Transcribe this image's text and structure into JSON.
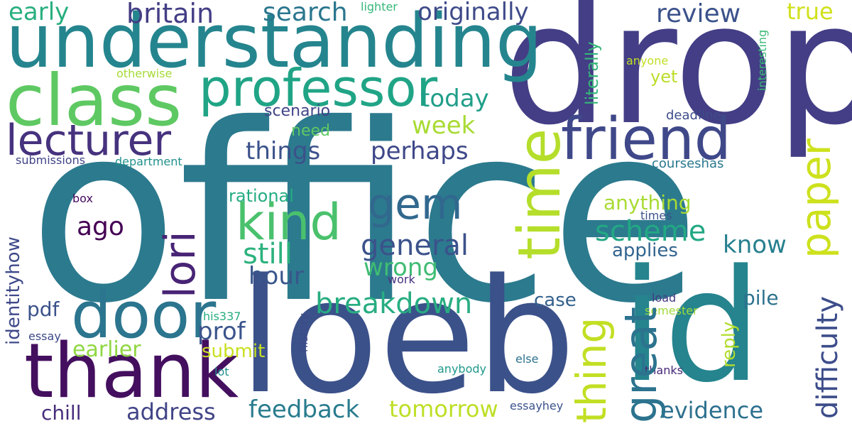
{
  "words": [
    {
      "text": "office",
      "color": "#2c7a8e",
      "rotate": 0
    },
    {
      "text": "drop",
      "color": "#433e85",
      "rotate": 0
    },
    {
      "text": "loeb",
      "color": "#3b518a",
      "rotate": 0
    },
    {
      "text": "id",
      "color": "#25848e",
      "rotate": 0
    },
    {
      "text": "understanding",
      "color": "#25858e",
      "rotate": 0
    },
    {
      "text": "class",
      "color": "#5ec962",
      "rotate": 0
    },
    {
      "text": "thank",
      "color": "#440f5f",
      "rotate": 0
    },
    {
      "text": "door",
      "color": "#2b758e",
      "rotate": 0
    },
    {
      "text": "friend",
      "color": "#3f4889",
      "rotate": 0
    },
    {
      "text": "time",
      "color": "#b5de2b",
      "rotate": -90
    },
    {
      "text": "professor",
      "color": "#20a486",
      "rotate": 0
    },
    {
      "text": "kind",
      "color": "#4ac16d",
      "rotate": 0
    },
    {
      "text": "lecturer",
      "color": "#46327e",
      "rotate": 0
    },
    {
      "text": "thing",
      "color": "#c2df23",
      "rotate": -90
    },
    {
      "text": "great",
      "color": "#2c738e",
      "rotate": -90
    },
    {
      "text": "paper",
      "color": "#cde11d",
      "rotate": -90
    },
    {
      "text": "gem",
      "color": "#31688e",
      "rotate": 0
    },
    {
      "text": "lori",
      "color": "#482475",
      "rotate": -90
    },
    {
      "text": "difficulty",
      "color": "#3d4d8a",
      "rotate": -90
    },
    {
      "text": "britain",
      "color": "#433e85",
      "rotate": 0
    },
    {
      "text": "search",
      "color": "#2a768e",
      "rotate": 0
    },
    {
      "text": "originally",
      "color": "#3e4a89",
      "rotate": 0
    },
    {
      "text": "review",
      "color": "#3b528b",
      "rotate": 0
    },
    {
      "text": "early",
      "color": "#29af7f",
      "rotate": 0
    },
    {
      "text": "true",
      "color": "#d0e11c",
      "rotate": 0
    },
    {
      "text": "scheme",
      "color": "#22a884",
      "rotate": 0
    },
    {
      "text": "general",
      "color": "#3b528b",
      "rotate": 0
    },
    {
      "text": "breakdown",
      "color": "#27ad81",
      "rotate": 0
    },
    {
      "text": "things",
      "color": "#3b528b",
      "rotate": 0
    },
    {
      "text": "perhaps",
      "color": "#3f4889",
      "rotate": 0
    },
    {
      "text": "today",
      "color": "#1f9e89",
      "rotate": 0
    },
    {
      "text": "week",
      "color": "#a8db34",
      "rotate": 0
    },
    {
      "text": "still",
      "color": "#2db27d",
      "rotate": 0
    },
    {
      "text": "wrong",
      "color": "#3fbc73",
      "rotate": 0
    },
    {
      "text": "hour",
      "color": "#39568c",
      "rotate": 0
    },
    {
      "text": "prof",
      "color": "#3a548c",
      "rotate": 0
    },
    {
      "text": "ago",
      "color": "#440154",
      "rotate": 0
    },
    {
      "text": "know",
      "color": "#27808e",
      "rotate": 0
    },
    {
      "text": "address",
      "color": "#414487",
      "rotate": 0
    },
    {
      "text": "feedback",
      "color": "#287c8e",
      "rotate": 0
    },
    {
      "text": "tomorrow",
      "color": "#bddf26",
      "rotate": 0
    },
    {
      "text": "evidence",
      "color": "#2d708e",
      "rotate": 0
    },
    {
      "text": "anything",
      "color": "#a8db34",
      "rotate": 0
    },
    {
      "text": "applies",
      "color": "#32648e",
      "rotate": 0
    },
    {
      "text": "earlier",
      "color": "#90d743",
      "rotate": 0
    },
    {
      "text": "submit",
      "color": "#c8e020",
      "rotate": 0
    },
    {
      "text": "pdf",
      "color": "#3b528b",
      "rotate": 0
    },
    {
      "text": "identityhow",
      "color": "#3e4989",
      "rotate": -90
    },
    {
      "text": "reply",
      "color": "#b2dd2d",
      "rotate": -90
    },
    {
      "text": "case",
      "color": "#34618d",
      "rotate": 0
    },
    {
      "text": "pile",
      "color": "#2c728e",
      "rotate": 0
    },
    {
      "text": "chill",
      "color": "#472d7b",
      "rotate": 0
    },
    {
      "text": "rational",
      "color": "#25ac82",
      "rotate": 0
    },
    {
      "text": "scenario",
      "color": "#414487",
      "rotate": 0
    },
    {
      "text": "need",
      "color": "#5ec962",
      "rotate": 0
    },
    {
      "text": "literally",
      "color": "#35b779",
      "rotate": -90
    },
    {
      "text": "yet",
      "color": "#bade28",
      "rotate": 0
    },
    {
      "text": "anyone",
      "color": "#c2df23",
      "rotate": 0
    },
    {
      "text": "interesting",
      "color": "#3aba76",
      "rotate": -90
    },
    {
      "text": "lighter",
      "color": "#35b779",
      "rotate": 0
    },
    {
      "text": "otherwise",
      "color": "#a5db36",
      "rotate": 0
    },
    {
      "text": "deadline",
      "color": "#3e4c8a",
      "rotate": 0
    },
    {
      "text": "courseshas",
      "color": "#2a788e",
      "rotate": 0
    },
    {
      "text": "submissions",
      "color": "#414487",
      "rotate": 0
    },
    {
      "text": "department",
      "color": "#21918c",
      "rotate": 0
    },
    {
      "text": "times",
      "color": "#3b528b",
      "rotate": 0
    },
    {
      "text": "box",
      "color": "#450a5c",
      "rotate": 0
    },
    {
      "text": "work",
      "color": "#46307e",
      "rotate": 0
    },
    {
      "text": "history",
      "color": "#3e4a89",
      "rotate": -90
    },
    {
      "text": "his337",
      "color": "#27ad81",
      "rotate": 0
    },
    {
      "text": "load",
      "color": "#443983",
      "rotate": 0
    },
    {
      "text": "semester",
      "color": "#9fda3a",
      "rotate": 0
    },
    {
      "text": "essay",
      "color": "#3e4989",
      "rotate": 0
    },
    {
      "text": "lot",
      "color": "#218f8d",
      "rotate": 0
    },
    {
      "text": "else",
      "color": "#2c728e",
      "rotate": 0
    },
    {
      "text": "anybody",
      "color": "#1f988b",
      "rotate": 0
    },
    {
      "text": "thanks",
      "color": "#482878",
      "rotate": 0
    },
    {
      "text": "essayhey",
      "color": "#3b528b",
      "rotate": 0
    }
  ]
}
